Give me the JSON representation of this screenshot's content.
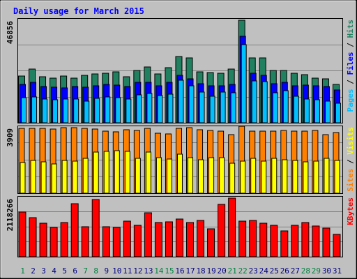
{
  "chart_data": {
    "type": "bar",
    "title": "Daily usage for March 2015",
    "categories": [
      "1",
      "2",
      "3",
      "4",
      "5",
      "6",
      "7",
      "8",
      "9",
      "10",
      "11",
      "12",
      "13",
      "14",
      "15",
      "16",
      "17",
      "18",
      "19",
      "20",
      "21",
      "22",
      "23",
      "24",
      "25",
      "26",
      "27",
      "28",
      "29",
      "30",
      "31"
    ],
    "weekend_days": [
      "1",
      "7",
      "8",
      "14",
      "15",
      "21",
      "22",
      "28",
      "29"
    ],
    "panels": [
      {
        "id": "hits",
        "max_label": "46856",
        "ylim": [
          0,
          46856
        ],
        "side_label": [
          "Pages",
          "Files",
          "Hits"
        ],
        "series": [
          {
            "name": "Hits",
            "color": "#208060",
            "values": [
              21200,
              24500,
              20800,
              20400,
              21200,
              20200,
              21600,
              22100,
              22500,
              23100,
              20800,
              23900,
              25200,
              22300,
              24900,
              30100,
              29600,
              23200,
              22900,
              22600,
              24400,
              46500,
              29400,
              29300,
              23700,
              23900,
              22500,
              21700,
              20300,
              20100,
              17500
            ]
          },
          {
            "name": "Files",
            "color": "#0000ff",
            "values": [
              17500,
              18300,
              16400,
              16200,
              15700,
              16400,
              16000,
              16800,
              17500,
              17000,
              16600,
              18300,
              18500,
              16700,
              18400,
              21600,
              20100,
              17800,
              16900,
              16800,
              17400,
              39100,
              22600,
              21400,
              17800,
              18300,
              16900,
              17000,
              16700,
              16500,
              14900
            ]
          },
          {
            "name": "Pages",
            "color": "#00c0ff",
            "values": [
              11500,
              11600,
              10800,
              10400,
              10700,
              10800,
              9900,
              11200,
              11800,
              11500,
              10800,
              12800,
              13400,
              12300,
              13000,
              19400,
              16900,
              13800,
              12000,
              13800,
              13600,
              35500,
              19100,
              18800,
              13700,
              14700,
              12100,
              10900,
              10300,
              9800,
              8900
            ]
          }
        ]
      },
      {
        "id": "visits",
        "max_label": "3909",
        "ylim": [
          0,
          3909
        ],
        "side_label": [
          "Sites",
          "Visits"
        ],
        "series": [
          {
            "name": "Sites",
            "color": "#ff8000",
            "values": [
              3840,
              3840,
              3840,
              3800,
              3850,
              3850,
              3810,
              3800,
              3650,
              3620,
              3740,
              3710,
              3810,
              3540,
              3500,
              3830,
              3850,
              3760,
              3720,
              3680,
              3460,
              3930,
              3670,
              3650,
              3650,
              3690,
              3660,
              3680,
              3710,
              3470,
              3560
            ]
          },
          {
            "name": "Visits",
            "color": "#ffff00",
            "values": [
              1800,
              1930,
              1870,
              1720,
              1920,
              1880,
              2040,
              2410,
              2470,
              2520,
              2470,
              2050,
              2410,
              2090,
              2030,
              2320,
              2080,
              1960,
              2100,
              2090,
              1750,
              1890,
              2070,
              1900,
              2060,
              1980,
              1930,
              1860,
              1900,
              2050,
              1950
            ]
          }
        ]
      },
      {
        "id": "kbytes",
        "max_label": "2118266",
        "ylim": [
          0,
          2118266
        ],
        "side_label": [
          "KBytes"
        ],
        "series": [
          {
            "name": "KBytes",
            "color": "#ff0000",
            "values": [
              1603000,
              1390000,
              1201000,
              1050000,
              1210000,
              1891000,
              1070000,
              2035000,
              1070000,
              1050000,
              1260000,
              1133000,
              1575000,
              1214000,
              1252000,
              1349000,
              1213000,
              1295000,
              997000,
              1874000,
              2090000,
              1283000,
              1304000,
              1199000,
              1113000,
              920000,
              1124000,
              1216000,
              1102000,
              1024000,
              800000
            ]
          }
        ]
      }
    ]
  },
  "colors": {
    "background": "#c0c0c0",
    "title_text": "#0000ff",
    "weekday_text": "#000080",
    "weekend_text": "#008040",
    "gridline": "#808080"
  }
}
